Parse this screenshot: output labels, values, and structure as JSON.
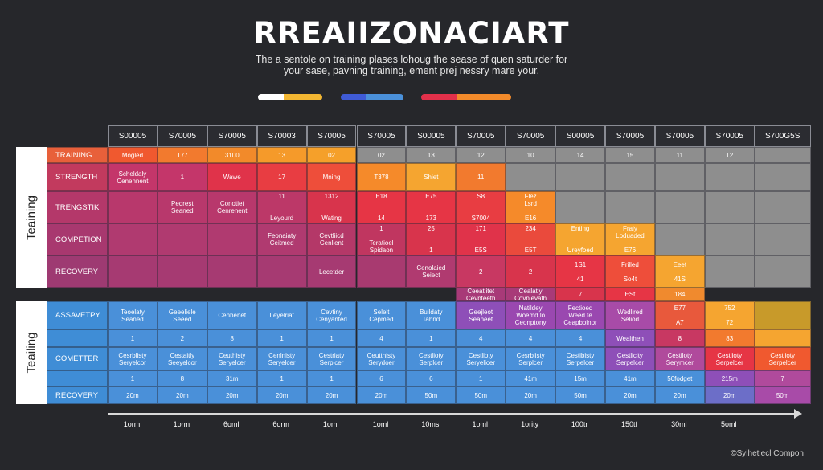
{
  "title": "RREAIIZONACIART",
  "subtitle_line1": "The a sentole on training plases lohoug the sease of quen saturder for",
  "subtitle_line2": "your sase, pavning training, ement prej nessry mare your.",
  "legend_pills": [
    {
      "name": "pill-1",
      "colors": [
        "#ffffff",
        "#f2b632"
      ]
    },
    {
      "name": "pill-2",
      "colors": [
        "#3f5bd6",
        "#4a90d9"
      ]
    },
    {
      "name": "pill-3",
      "colors": [
        "#e2304a",
        "#f28a2a"
      ]
    }
  ],
  "side_labels": [
    "Teaining",
    "Teailing"
  ],
  "columns": [
    "S00005",
    "S70005",
    "S70005",
    "S70003",
    "S70005",
    "S70005",
    "S00005",
    "S70005",
    "S70005",
    "S00005",
    "S70005",
    "S70005",
    "S70005",
    "S700G5S"
  ],
  "rows_top": [
    {
      "label": "TRAINING",
      "label_color": "#e8603a",
      "cells": [
        {
          "t": "Mogled",
          "c": "#f0592f"
        },
        {
          "t": "T77",
          "c": "#f27a2e"
        },
        {
          "t": "3100",
          "c": "#f28a2a"
        },
        {
          "t": "13",
          "c": "#f59a2a"
        },
        {
          "t": "02",
          "c": "#f5a02a"
        },
        {
          "t": "02",
          "c": "#8e8e8e"
        },
        {
          "t": "13",
          "c": "#8e8e8e"
        },
        {
          "t": "12",
          "c": "#8e8e8e"
        },
        {
          "t": "10",
          "c": "#8e8e8e"
        },
        {
          "t": "14",
          "c": "#8e8e8e"
        },
        {
          "t": "15",
          "c": "#8e8e8e"
        },
        {
          "t": "11",
          "c": "#8e8e8e"
        },
        {
          "t": "12",
          "c": "#8e8e8e"
        },
        {
          "t": "",
          "c": "#8e8e8e"
        }
      ]
    },
    {
      "label": "STRENGTH",
      "label_color": "#c23a5e",
      "cells": [
        {
          "t": "Scheldaly\nCenennent",
          "c": "#c4366a"
        },
        {
          "t": "1",
          "c": "#c4366a"
        },
        {
          "t": "Wawe",
          "c": "#e0334a"
        },
        {
          "t": "17",
          "c": "#e83d42"
        },
        {
          "t": "Mning",
          "c": "#ee4e3a"
        },
        {
          "t": "T378",
          "c": "#f58a2a"
        },
        {
          "t": "Shiet",
          "c": "#f5a530"
        },
        {
          "t": "11",
          "c": "#f27a2e"
        },
        {
          "t": "",
          "c": "#8e8e8e"
        },
        {
          "t": "",
          "c": "#8e8e8e"
        },
        {
          "t": "",
          "c": "#8e8e8e"
        },
        {
          "t": "",
          "c": "#8e8e8e"
        },
        {
          "t": "",
          "c": "#8e8e8e"
        },
        {
          "t": "",
          "c": "#8e8e8e"
        }
      ]
    },
    {
      "label": "TRENGSTIK",
      "label_color": "#b4386a",
      "cells": [
        {
          "t": "",
          "c": "#b8386c"
        },
        {
          "t": "Pedrest\nSeaned",
          "c": "#b8386c"
        },
        {
          "t": "Conotiet\nCenrenent",
          "c": "#b8386c"
        },
        {
          "t": "11\n\n\nLeyourd",
          "c": "#bc3868"
        },
        {
          "t": "1312\n\n\nWating",
          "c": "#d8344c"
        },
        {
          "t": "E18\n\n\n14",
          "c": "#e63545"
        },
        {
          "t": "E75\n\n\n173",
          "c": "#e63545"
        },
        {
          "t": "S8\n\n\nS7004",
          "c": "#e83d42"
        },
        {
          "t": "Flez\nLsrd\n\nE16",
          "c": "#f58a2a"
        },
        {
          "t": "",
          "c": "#8e8e8e"
        },
        {
          "t": "",
          "c": "#8e8e8e"
        },
        {
          "t": "",
          "c": "#8e8e8e"
        },
        {
          "t": "",
          "c": "#8e8e8e"
        },
        {
          "t": "",
          "c": "#8e8e8e"
        }
      ]
    },
    {
      "label": "COMPETION",
      "label_color": "#a8386f",
      "cells": [
        {
          "t": "",
          "c": "#b03a70"
        },
        {
          "t": "",
          "c": "#b03a70"
        },
        {
          "t": "",
          "c": "#b03a70"
        },
        {
          "t": "Feonaiaty\nCeitmed",
          "c": "#b03a70"
        },
        {
          "t": "Cevtliicd\nCenlient",
          "c": "#b43868"
        },
        {
          "t": "1\n\nTeratioel\nSpidaon",
          "c": "#c03660"
        },
        {
          "t": "25\n\n\n1",
          "c": "#d8344c"
        },
        {
          "t": "171\n\n\nE5S",
          "c": "#e0334a"
        },
        {
          "t": "234\n\n\nE5T",
          "c": "#ea4a3c"
        },
        {
          "t": "Enting\n\n\nUreyfoed",
          "c": "#f5a530"
        },
        {
          "t": "Fraiy\nLoduaded\n\nE76",
          "c": "#f5a530"
        },
        {
          "t": "",
          "c": "#8e8e8e"
        },
        {
          "t": "",
          "c": "#8e8e8e"
        },
        {
          "t": "",
          "c": "#8e8e8e"
        }
      ]
    },
    {
      "label": "RECOVERY",
      "label_color": "#9e3a72",
      "cells": [
        {
          "t": "",
          "c": "#a63a72"
        },
        {
          "t": "",
          "c": "#a63a72"
        },
        {
          "t": "",
          "c": "#a63a72"
        },
        {
          "t": "",
          "c": "#a63a72"
        },
        {
          "t": "Lecetder",
          "c": "#a63a72"
        },
        {
          "t": "",
          "c": "#a83a70"
        },
        {
          "t": "Cenolaied\nSeiect",
          "c": "#b03a70"
        },
        {
          "t": "2",
          "c": "#c83862"
        },
        {
          "t": "2",
          "c": "#d8344c"
        },
        {
          "t": "1S1\n\n41",
          "c": "#e63545"
        },
        {
          "t": "Frilled\n\nSo4t",
          "c": "#ee4e3a"
        },
        {
          "t": "Eeet\n\n41S",
          "c": "#f5a530"
        },
        {
          "t": "",
          "c": "#8e8e8e"
        },
        {
          "t": "",
          "c": "#8e8e8e"
        }
      ]
    }
  ],
  "extra_top": [
    {
      "col": 7,
      "t": "Ceeatlitet\nCevpteeth",
      "c": "#a83a78"
    },
    {
      "col": 8,
      "t": "Cealatiy\nCoyplevath",
      "c": "#a83a78"
    },
    {
      "col": 9,
      "t": "7",
      "c": "#d8344c"
    },
    {
      "col": 10,
      "t": "ESt",
      "c": "#e63545"
    },
    {
      "col": 11,
      "t": "184",
      "c": "#f08a2e"
    }
  ],
  "rows_bottom": [
    {
      "label": "ASSAVETPY",
      "label_color": "#3f8dd6",
      "cells": [
        {
          "t": "Teoelaty\nSeaned",
          "c": "#4a90d9"
        },
        {
          "t": "Geeeliele\nSeeed",
          "c": "#4a90d9"
        },
        {
          "t": "Cenhenet",
          "c": "#4a90d9"
        },
        {
          "t": "Leyelriat",
          "c": "#4a90d9"
        },
        {
          "t": "Cevtiny\nCenyanted",
          "c": "#4a90d9"
        },
        {
          "t": "Selelt\nCepmed",
          "c": "#4a90d9"
        },
        {
          "t": "Buildaty\nTahnd",
          "c": "#4a90d9"
        },
        {
          "t": "Geejleot\nSeaneet",
          "c": "#8e4fb8"
        },
        {
          "t": "Natildey\nWoemd lo\nCeonptony",
          "c": "#9a48b0"
        },
        {
          "t": "Fectioed\nWeed te\nCeapboinor",
          "c": "#9a48b0"
        },
        {
          "t": "Wedlired\nSeliod",
          "c": "#a84ba8"
        },
        {
          "t": "E77\n\nA7",
          "c": "#e8593c"
        },
        {
          "t": "752\n\n72",
          "c": "#f5a530"
        },
        {
          "t": "",
          "c": "#c89a2a"
        }
      ]
    },
    {
      "label": "",
      "label_color": "#3f8dd6",
      "cells": [
        {
          "t": "1",
          "c": "#4a90d9"
        },
        {
          "t": "2",
          "c": "#4a90d9"
        },
        {
          "t": "8",
          "c": "#4a90d9"
        },
        {
          "t": "1",
          "c": "#4a90d9"
        },
        {
          "t": "1",
          "c": "#4a90d9"
        },
        {
          "t": "4",
          "c": "#4a90d9"
        },
        {
          "t": "1",
          "c": "#4a90d9"
        },
        {
          "t": "4",
          "c": "#4a90d9"
        },
        {
          "t": "4",
          "c": "#4a90d9"
        },
        {
          "t": "4",
          "c": "#4a90d9"
        },
        {
          "t": "Wealthen",
          "c": "#8e4fb8"
        },
        {
          "t": "8",
          "c": "#c83862"
        },
        {
          "t": "83",
          "c": "#f27a2e"
        },
        {
          "t": "",
          "c": "#f5a530"
        }
      ]
    },
    {
      "label": "COMETTER",
      "label_color": "#3f8dd6",
      "cells": [
        {
          "t": "Cesrblisty\nSeryelcor",
          "c": "#4a90d9"
        },
        {
          "t": "Cestaitly\nSeeyelcor",
          "c": "#4a90d9"
        },
        {
          "t": "Ceuthisty\nSeryelcer",
          "c": "#4a90d9"
        },
        {
          "t": "Cenlnisty\nSeryelcer",
          "c": "#4a90d9"
        },
        {
          "t": "Cestriaty\nSerplcer",
          "c": "#4a90d9"
        },
        {
          "t": "Ceutthisty\nSerydoer",
          "c": "#4a90d9"
        },
        {
          "t": "Cestlioty\nSerplcer",
          "c": "#4a90d9"
        },
        {
          "t": "Cestlioty\nSeryelicer",
          "c": "#4a90d9"
        },
        {
          "t": "Cesrblisty\nSerplcer",
          "c": "#4a90d9"
        },
        {
          "t": "Cestibisty\nSerpelcer",
          "c": "#4a90d9"
        },
        {
          "t": "Cestlicity\nSerpelcer",
          "c": "#8e4fb8"
        },
        {
          "t": "Cestiloty\nSerymcer",
          "c": "#b04a9c"
        },
        {
          "t": "Cestlioty\nSerpelcer",
          "c": "#e63545"
        },
        {
          "t": "Cestlioty\nSerpelcer",
          "c": "#f0592f"
        }
      ]
    },
    {
      "label": "",
      "label_color": "#3f8dd6",
      "cells": [
        {
          "t": "1",
          "c": "#4a90d9"
        },
        {
          "t": "8",
          "c": "#4a90d9"
        },
        {
          "t": "31m",
          "c": "#4a90d9"
        },
        {
          "t": "1",
          "c": "#4a90d9"
        },
        {
          "t": "1",
          "c": "#4a90d9"
        },
        {
          "t": "6",
          "c": "#4a90d9"
        },
        {
          "t": "6",
          "c": "#4a90d9"
        },
        {
          "t": "1",
          "c": "#4a90d9"
        },
        {
          "t": "41m",
          "c": "#4a90d9"
        },
        {
          "t": "15m",
          "c": "#4a90d9"
        },
        {
          "t": "41m",
          "c": "#4a90d9"
        },
        {
          "t": "50fodget",
          "c": "#4a90d9"
        },
        {
          "t": "215m",
          "c": "#8e4fb8"
        },
        {
          "t": "7",
          "c": "#b04a9c"
        }
      ]
    },
    {
      "label": "RECOVERY",
      "label_color": "#3f8dd6",
      "cells": [
        {
          "t": "20m",
          "c": "#4a90d9"
        },
        {
          "t": "20m",
          "c": "#4a90d9"
        },
        {
          "t": "20m",
          "c": "#4a90d9"
        },
        {
          "t": "20m",
          "c": "#4a90d9"
        },
        {
          "t": "20m",
          "c": "#4a90d9"
        },
        {
          "t": "20m",
          "c": "#4a90d9"
        },
        {
          "t": "50m",
          "c": "#4a90d9"
        },
        {
          "t": "50m",
          "c": "#4a90d9"
        },
        {
          "t": "20m",
          "c": "#4a90d9"
        },
        {
          "t": "50m",
          "c": "#4a90d9"
        },
        {
          "t": "20m",
          "c": "#4a90d9"
        },
        {
          "t": "20m",
          "c": "#4a90d9"
        },
        {
          "t": "20m",
          "c": "#6c6ec8"
        },
        {
          "t": "50m",
          "c": "#a84ba8"
        }
      ]
    }
  ],
  "axis_ticks": [
    "1orm",
    "1orm",
    "6oml",
    "6orm",
    "1oml",
    "1oml",
    "10ms",
    "1oml",
    "1ority",
    "100tr",
    "150tf",
    "30ml",
    "5oml"
  ],
  "footer": "©Syihetiecl Compon"
}
